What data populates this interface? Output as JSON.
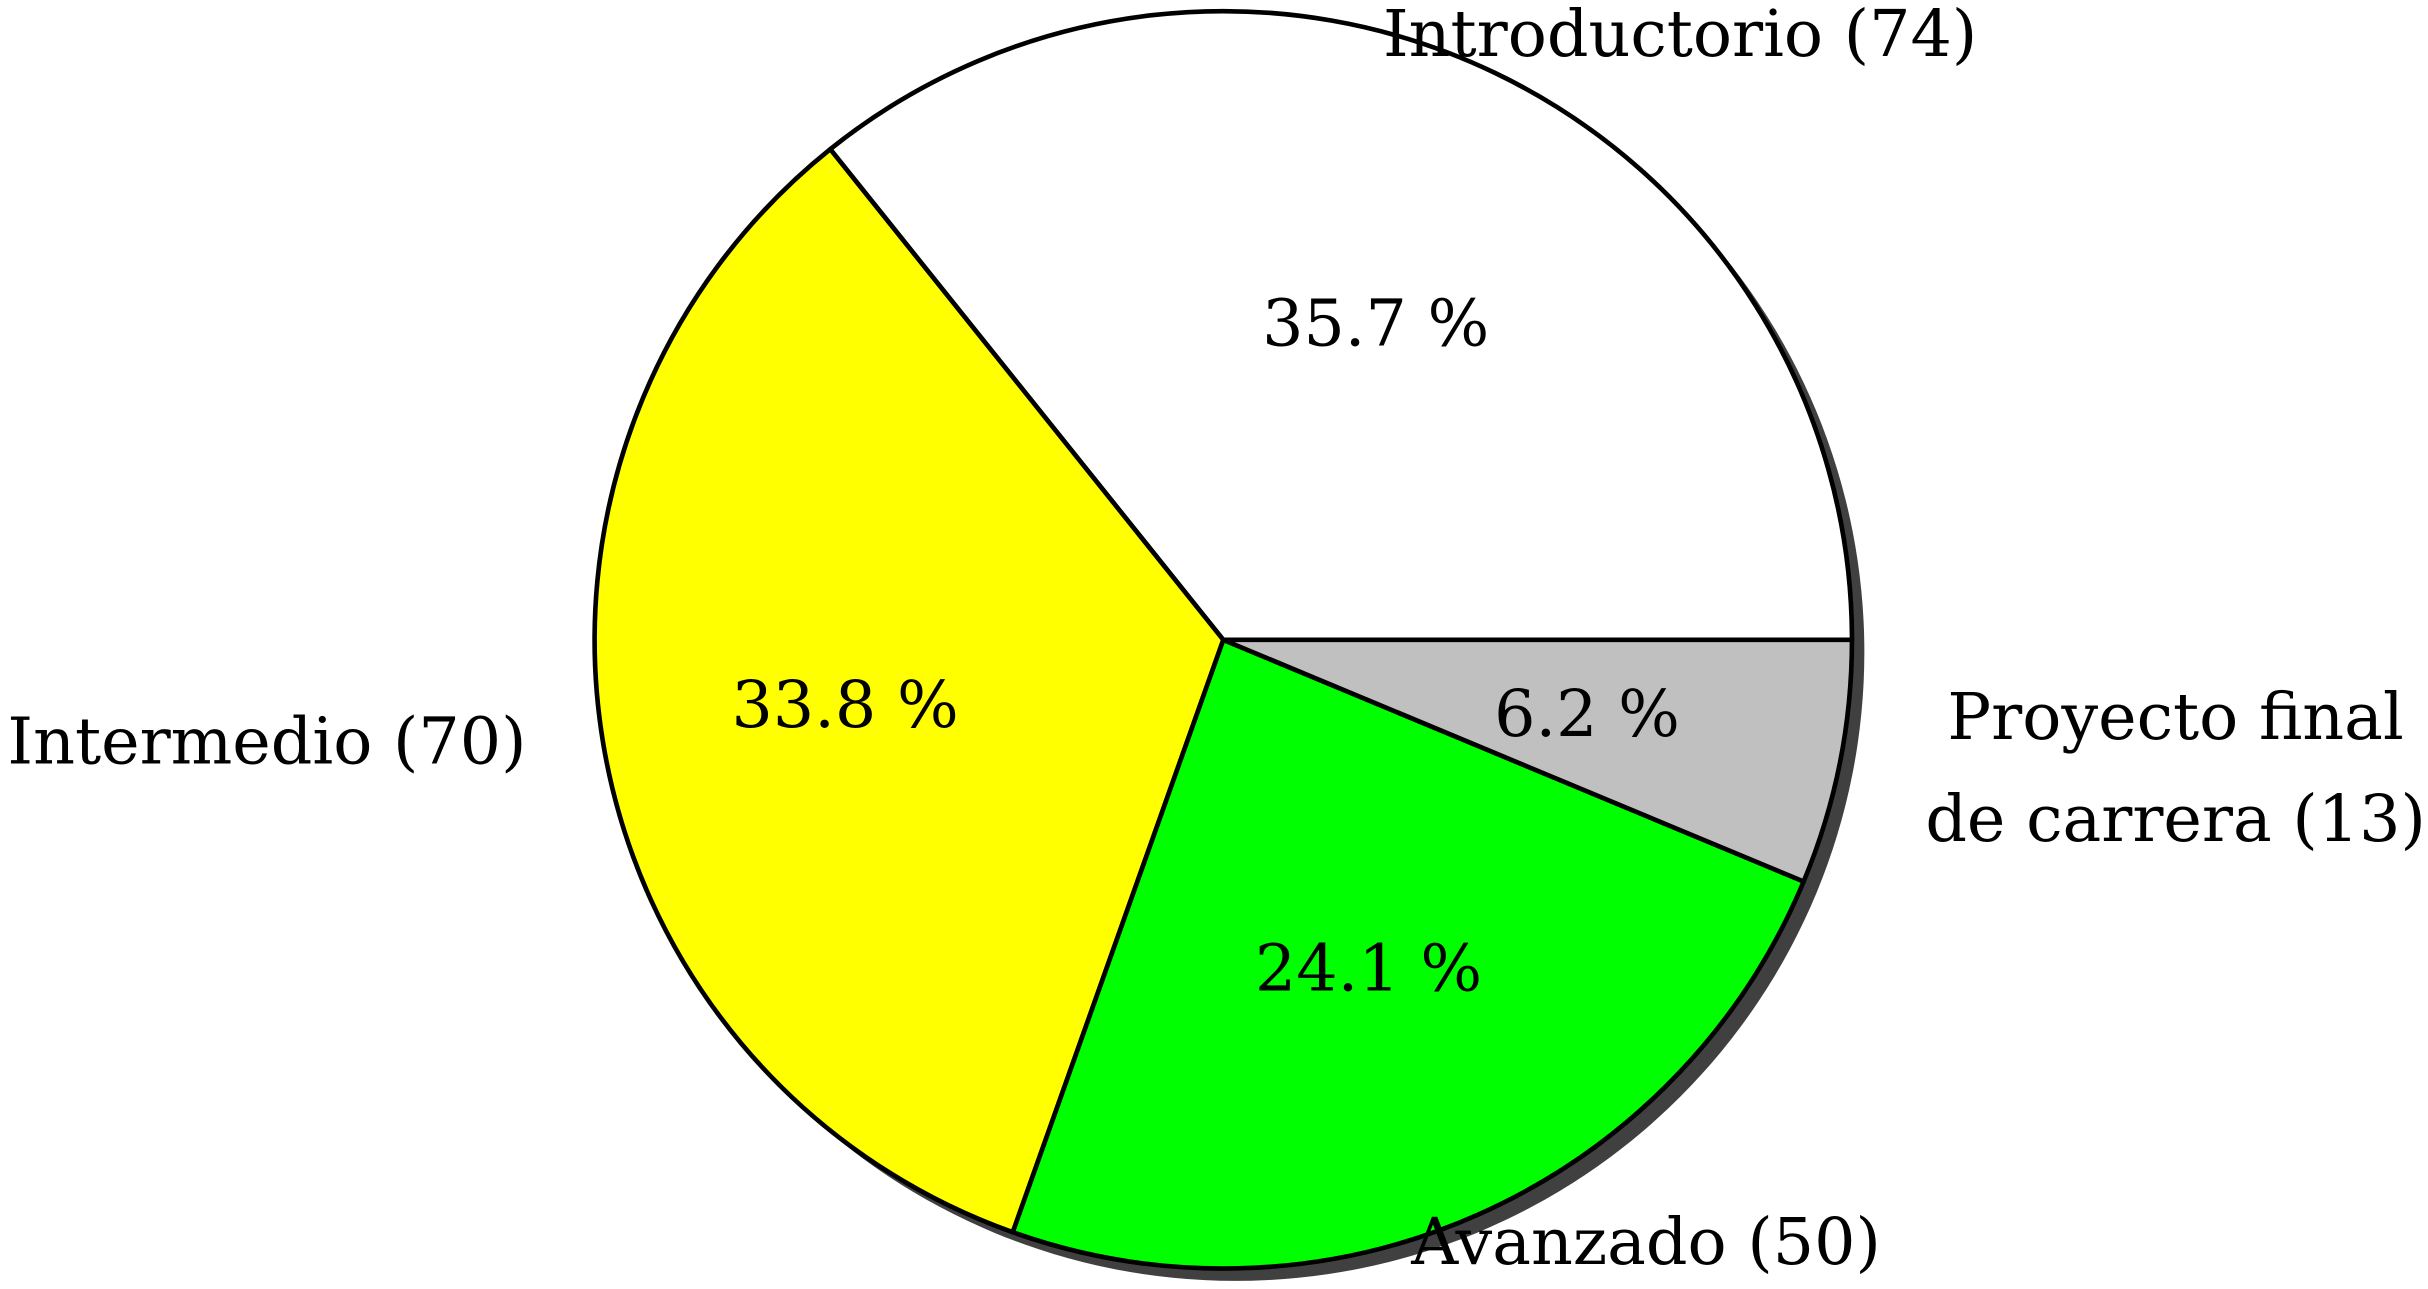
{
  "chart_data": {
    "type": "pie",
    "title": "",
    "start_angle_deg": 0,
    "direction": "counterclockwise",
    "shadow": true,
    "slices": [
      {
        "label": "Introductorio (74)",
        "label_lines": [
          "Introductorio (74)"
        ],
        "value": 74,
        "percent_label": "35.7 %",
        "color": "#ffffff"
      },
      {
        "label": "Intermedio (70)",
        "label_lines": [
          "Intermedio (70)"
        ],
        "value": 70,
        "percent_label": "33.8 %",
        "color": "#ffff00"
      },
      {
        "label": "Avanzado (50)",
        "label_lines": [
          "Avanzado (50)"
        ],
        "value": 50,
        "percent_label": "24.1 %",
        "color": "#00ff00"
      },
      {
        "label": "Proyecto final de carrera (13)",
        "label_lines": [
          "Proyecto final",
          "de carrera (13)"
        ],
        "value": 13,
        "percent_label": "6.2 %",
        "color": "#c0c0c0"
      }
    ]
  }
}
